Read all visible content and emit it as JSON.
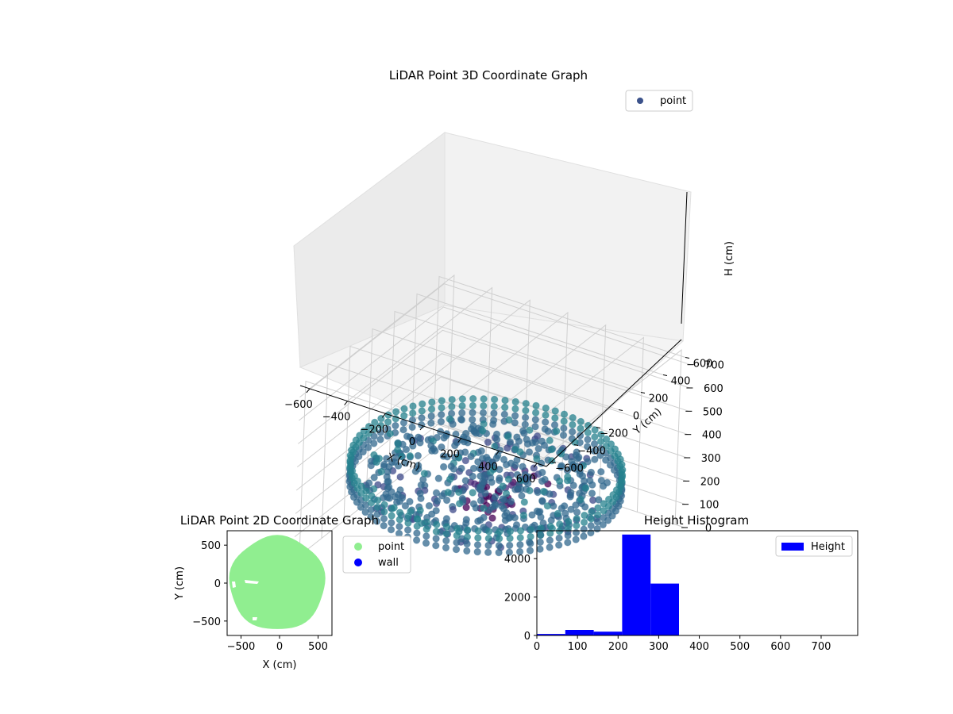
{
  "chart_data": [
    {
      "type": "scatter3d",
      "title": "LiDAR Point 3D Coordinate Graph",
      "xlabel": "X (cm)",
      "ylabel": "Y (cm)",
      "zlabel": "H (cm)",
      "xlim": [
        -650,
        650
      ],
      "ylim": [
        -650,
        650
      ],
      "zlim": [
        0,
        750
      ],
      "z_inverted": true,
      "x_ticks": [
        "−600",
        "−400",
        "−200",
        "0",
        "200",
        "400",
        "600"
      ],
      "y_ticks": [
        "−600",
        "−400",
        "−200",
        "0",
        "200",
        "400",
        "600"
      ],
      "z_ticks": [
        "0",
        "100",
        "200",
        "300",
        "400",
        "500",
        "600",
        "700"
      ],
      "legend": [
        "point"
      ],
      "legend_position": "top-right",
      "colormap": "viridis (colored by height)",
      "grid": true,
      "series": [
        {
          "name": "point",
          "marker_color": "#3b528b",
          "shape": "circular room ring of radius ~620 cm at height ~250-330 cm, interior points ~250 cm, sparse points ~20-150 cm near x=-200..0, y=0..400"
        }
      ]
    },
    {
      "type": "scatter",
      "title": "LiDAR Point 2D Coordinate Graph",
      "xlabel": "X (cm)",
      "ylabel": "Y (cm)",
      "xlim": [
        -680,
        680
      ],
      "ylim": [
        -690,
        690
      ],
      "x_ticks": [
        "−500",
        "0",
        "500"
      ],
      "y_ticks": [
        "500",
        "0",
        "−500"
      ],
      "legend_position": "outside-right",
      "series": [
        {
          "name": "point",
          "color": "#90ee90",
          "shape": "filled disc radius ~620 cm centered near (-30, 0)"
        },
        {
          "name": "wall",
          "color": "#0000ff",
          "shape": "none visible"
        }
      ]
    },
    {
      "type": "bar",
      "title": "Height Histogram",
      "xlabel": "",
      "ylabel": "",
      "xlim": [
        0,
        790
      ],
      "ylim": [
        0,
        5450
      ],
      "x_ticks": [
        "0",
        "100",
        "200",
        "300",
        "400",
        "500",
        "600",
        "700"
      ],
      "y_ticks": [
        "0",
        "2000",
        "4000"
      ],
      "bin_width": 70,
      "bins": [
        {
          "start": 0,
          "end": 70,
          "count": 80
        },
        {
          "start": 70,
          "end": 140,
          "count": 290
        },
        {
          "start": 140,
          "end": 210,
          "count": 200
        },
        {
          "start": 210,
          "end": 280,
          "count": 5250
        },
        {
          "start": 280,
          "end": 350,
          "count": 2700
        }
      ],
      "color": "#0000ff",
      "legend": [
        "Height"
      ],
      "legend_position": "top-right"
    }
  ]
}
